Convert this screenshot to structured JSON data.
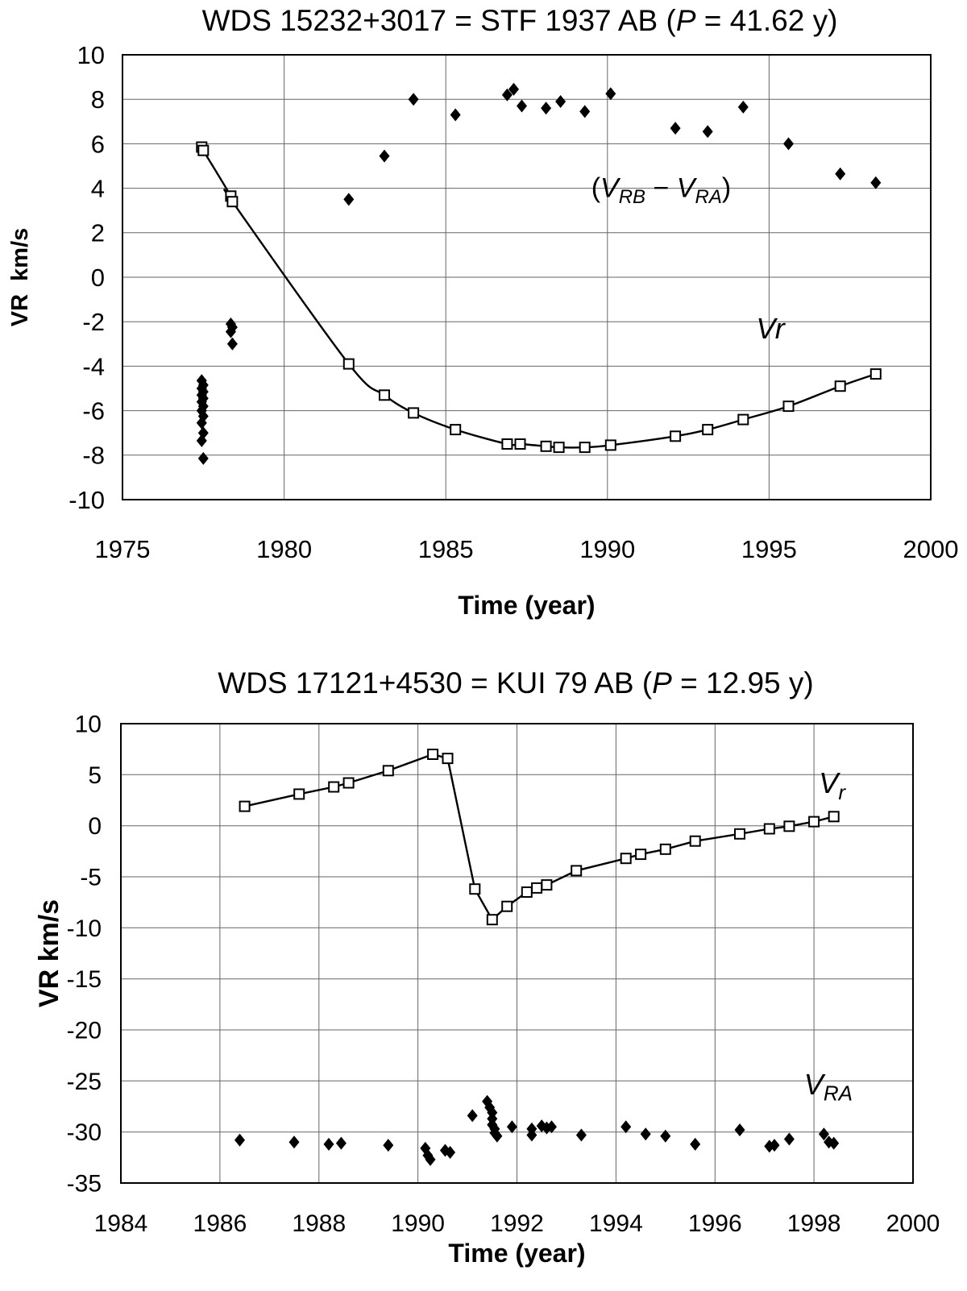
{
  "style": {
    "background": "#ffffff",
    "line_color": "#000000",
    "marker_color": "#000000",
    "grid_color": "#666666",
    "axis_color": "#000000"
  },
  "chart_data": [
    {
      "type": "line",
      "title_parts": [
        {
          "t": "WDS 15232+3017 = STF 1937 AB ("
        },
        {
          "t": "P",
          "i": true
        },
        {
          "t": " = 41.62 y)"
        }
      ],
      "xlabel": "Time (year)",
      "ylabel": "VR  km/s",
      "xlim": [
        1975,
        2000
      ],
      "ylim": [
        -10,
        10
      ],
      "xticks": [
        1975,
        1980,
        1985,
        1990,
        1995,
        2000
      ],
      "yticks": [
        10,
        8,
        6,
        4,
        2,
        0,
        -2,
        -4,
        -6,
        -8,
        -10
      ],
      "grid": true,
      "series": [
        {
          "name": "Vr orbital solution",
          "marker": "square-open",
          "line": true,
          "smooth": true,
          "points": [
            [
              1977.45,
              5.85
            ],
            [
              1977.5,
              5.7
            ],
            [
              1978.35,
              3.65
            ],
            [
              1978.4,
              3.4
            ],
            [
              1982.0,
              -3.9
            ],
            [
              1983.1,
              -5.3
            ],
            [
              1984.0,
              -6.1
            ],
            [
              1985.3,
              -6.85
            ],
            [
              1986.9,
              -7.5
            ],
            [
              1987.3,
              -7.5
            ],
            [
              1988.1,
              -7.6
            ],
            [
              1988.5,
              -7.65
            ],
            [
              1989.3,
              -7.65
            ],
            [
              1990.1,
              -7.55
            ],
            [
              1992.1,
              -7.15
            ],
            [
              1993.1,
              -6.85
            ],
            [
              1994.2,
              -6.4
            ],
            [
              1995.6,
              -5.8
            ],
            [
              1997.2,
              -4.9
            ],
            [
              1998.3,
              -4.35
            ]
          ]
        },
        {
          "name": "VRB minus VRA",
          "marker": "diamond",
          "line": false,
          "smooth": false,
          "points": [
            [
              1982.0,
              3.5
            ],
            [
              1983.1,
              5.45
            ],
            [
              1984.0,
              8.0
            ],
            [
              1985.3,
              7.3
            ],
            [
              1986.9,
              8.2
            ],
            [
              1987.1,
              8.45
            ],
            [
              1987.35,
              7.7
            ],
            [
              1988.1,
              7.6
            ],
            [
              1988.55,
              7.9
            ],
            [
              1989.3,
              7.45
            ],
            [
              1990.1,
              8.25
            ],
            [
              1992.1,
              6.7
            ],
            [
              1993.1,
              6.55
            ],
            [
              1994.2,
              7.65
            ],
            [
              1995.6,
              6.0
            ],
            [
              1997.2,
              4.65
            ],
            [
              1998.3,
              4.25
            ],
            [
              1977.45,
              -4.65
            ],
            [
              1977.5,
              -4.85
            ],
            [
              1977.45,
              -5.0
            ],
            [
              1977.5,
              -5.15
            ],
            [
              1977.45,
              -5.3
            ],
            [
              1977.5,
              -5.45
            ],
            [
              1977.45,
              -5.6
            ],
            [
              1977.5,
              -5.8
            ],
            [
              1977.45,
              -6.0
            ],
            [
              1977.5,
              -6.25
            ],
            [
              1977.45,
              -6.55
            ],
            [
              1977.5,
              -7.0
            ],
            [
              1977.45,
              -7.35
            ],
            [
              1977.5,
              -8.15
            ],
            [
              1978.35,
              -2.1
            ],
            [
              1978.4,
              -2.25
            ],
            [
              1978.35,
              -2.45
            ],
            [
              1978.4,
              -3.0
            ]
          ]
        }
      ],
      "annotations": [
        {
          "x": 1989.5,
          "y": 3.6,
          "fs": 34,
          "parts": [
            {
              "t": "("
            },
            {
              "t": "V",
              "i": true
            },
            {
              "t": "RB",
              "i": true,
              "sub": true
            },
            {
              "t": " − "
            },
            {
              "t": "V",
              "i": true
            },
            {
              "t": "RA",
              "i": true,
              "sub": true
            },
            {
              "t": ")"
            }
          ]
        },
        {
          "x": 1994.6,
          "y": -2.75,
          "fs": 36,
          "parts": [
            {
              "t": "Vr",
              "i": true
            }
          ]
        }
      ]
    },
    {
      "type": "line",
      "title_parts": [
        {
          "t": "WDS 17121+4530 = KUI 79 AB ("
        },
        {
          "t": "P",
          "i": true
        },
        {
          "t": " = 12.95 y)"
        }
      ],
      "xlabel": "Time (year)",
      "ylabel": "VR km/s",
      "xlim": [
        1984,
        2000
      ],
      "ylim": [
        -35,
        10
      ],
      "xticks": [
        1984,
        1986,
        1988,
        1990,
        1992,
        1994,
        1996,
        1998,
        2000
      ],
      "yticks": [
        10,
        5,
        0,
        -5,
        -10,
        -15,
        -20,
        -25,
        -30,
        -35
      ],
      "grid": true,
      "series": [
        {
          "name": "Vr orbital solution",
          "marker": "square-open",
          "line": true,
          "smooth": false,
          "points": [
            [
              1986.5,
              1.9
            ],
            [
              1987.6,
              3.1
            ],
            [
              1988.3,
              3.8
            ],
            [
              1988.6,
              4.2
            ],
            [
              1989.4,
              5.4
            ],
            [
              1990.3,
              7.0
            ],
            [
              1990.6,
              6.6
            ],
            [
              1991.15,
              -6.2
            ],
            [
              1991.5,
              -9.2
            ],
            [
              1991.8,
              -7.9
            ],
            [
              1992.2,
              -6.5
            ],
            [
              1992.4,
              -6.1
            ],
            [
              1992.6,
              -5.8
            ],
            [
              1993.2,
              -4.4
            ],
            [
              1994.2,
              -3.2
            ],
            [
              1994.5,
              -2.8
            ],
            [
              1995.0,
              -2.3
            ],
            [
              1995.6,
              -1.5
            ],
            [
              1996.5,
              -0.8
            ],
            [
              1997.1,
              -0.3
            ],
            [
              1997.5,
              -0.05
            ],
            [
              1998.0,
              0.4
            ],
            [
              1998.4,
              0.9
            ]
          ]
        },
        {
          "name": "VRA",
          "marker": "diamond",
          "line": false,
          "smooth": false,
          "points": [
            [
              1986.4,
              -30.8
            ],
            [
              1987.5,
              -31.0
            ],
            [
              1988.2,
              -31.2
            ],
            [
              1988.45,
              -31.1
            ],
            [
              1989.4,
              -31.3
            ],
            [
              1990.15,
              -31.6
            ],
            [
              1990.2,
              -32.3
            ],
            [
              1990.25,
              -32.7
            ],
            [
              1990.55,
              -31.8
            ],
            [
              1990.65,
              -32.0
            ],
            [
              1991.1,
              -28.4
            ],
            [
              1991.4,
              -27.0
            ],
            [
              1991.45,
              -27.6
            ],
            [
              1991.5,
              -28.1
            ],
            [
              1991.5,
              -28.7
            ],
            [
              1991.5,
              -29.3
            ],
            [
              1991.55,
              -29.7
            ],
            [
              1991.55,
              -30.1
            ],
            [
              1991.6,
              -30.4
            ],
            [
              1991.9,
              -29.5
            ],
            [
              1992.3,
              -29.7
            ],
            [
              1992.3,
              -30.3
            ],
            [
              1992.5,
              -29.4
            ],
            [
              1992.6,
              -29.6
            ],
            [
              1992.7,
              -29.5
            ],
            [
              1993.3,
              -30.3
            ],
            [
              1994.2,
              -29.5
            ],
            [
              1994.6,
              -30.2
            ],
            [
              1995.0,
              -30.4
            ],
            [
              1995.6,
              -31.2
            ],
            [
              1996.5,
              -29.8
            ],
            [
              1997.1,
              -31.4
            ],
            [
              1997.2,
              -31.3
            ],
            [
              1997.5,
              -30.7
            ],
            [
              1998.2,
              -30.2
            ],
            [
              1998.3,
              -31.0
            ],
            [
              1998.4,
              -31.1
            ]
          ]
        }
      ],
      "annotations": [
        {
          "x": 1998.1,
          "y": 3.2,
          "fs": 36,
          "parts": [
            {
              "t": "V",
              "i": true
            },
            {
              "t": "r",
              "i": true,
              "sub": true
            }
          ]
        },
        {
          "x": 1997.8,
          "y": -26.3,
          "fs": 36,
          "parts": [
            {
              "t": "V",
              "i": true
            },
            {
              "t": "RA",
              "i": true,
              "sub": true
            }
          ]
        }
      ]
    }
  ]
}
